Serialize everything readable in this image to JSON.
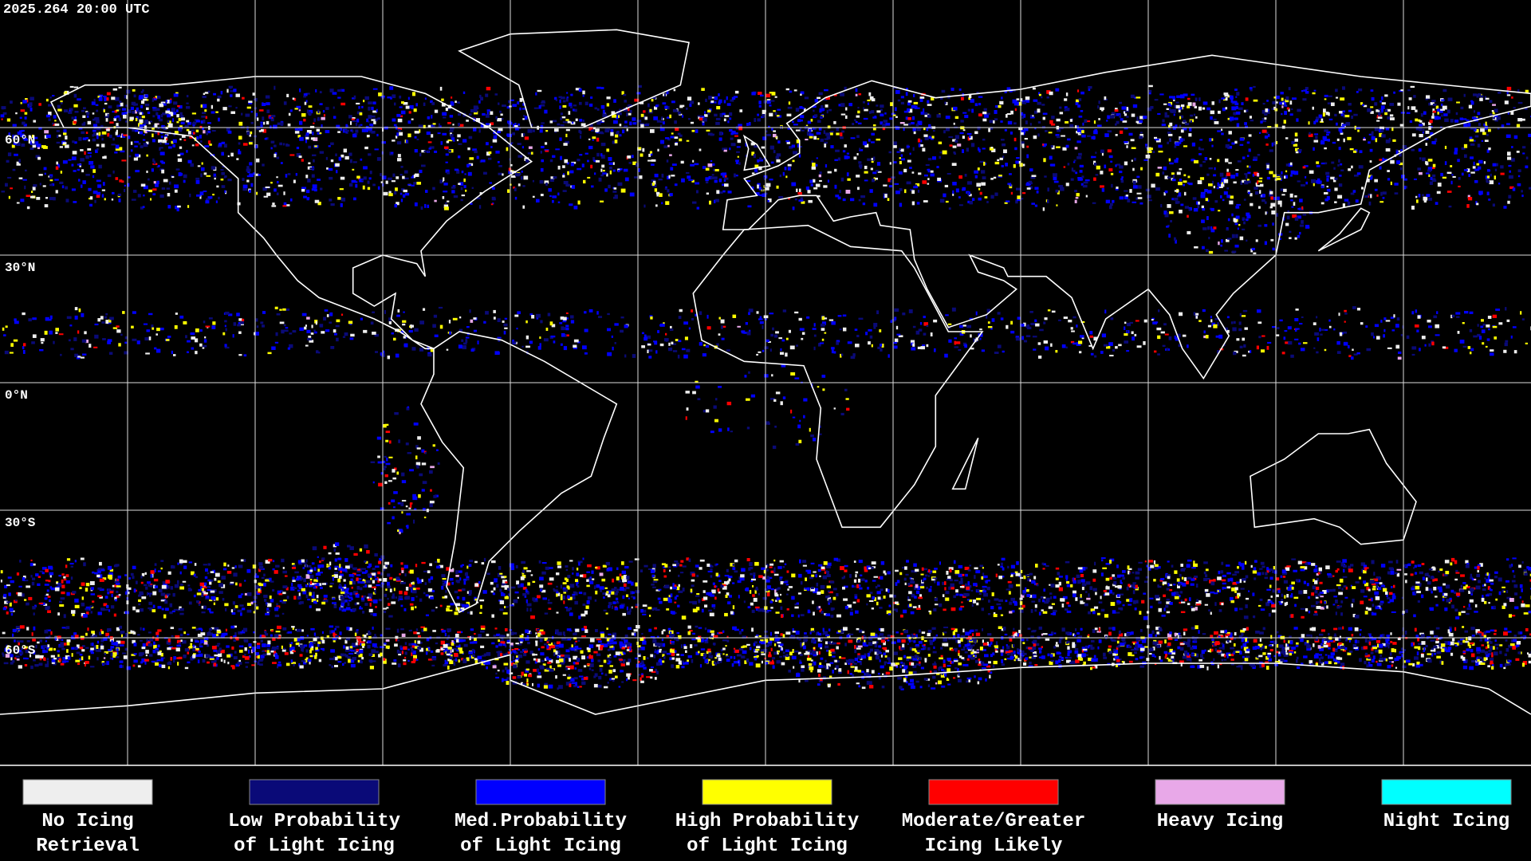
{
  "timestamp": "2025.264 20:00 UTC",
  "latitude_labels": [
    "60°N",
    "30°N",
    "0°N",
    "30°S",
    "60°S"
  ],
  "legend": [
    {
      "lines": [
        "No Icing",
        "Retrieval"
      ],
      "color": "#eeeeee"
    },
    {
      "lines": [
        "Low Probability",
        "of Light Icing"
      ],
      "color": "#0a0a78"
    },
    {
      "lines": [
        "Med.Probability",
        "of Light Icing"
      ],
      "color": "#0000ff"
    },
    {
      "lines": [
        "High Probability",
        "of Light Icing"
      ],
      "color": "#ffff00"
    },
    {
      "lines": [
        "Moderate/Greater",
        "Icing Likely"
      ],
      "color": "#ff0000"
    },
    {
      "lines": [
        "Heavy Icing"
      ],
      "color": "#e8a8e8"
    },
    {
      "lines": [
        "Night Icing"
      ],
      "color": "#00ffff"
    }
  ]
}
